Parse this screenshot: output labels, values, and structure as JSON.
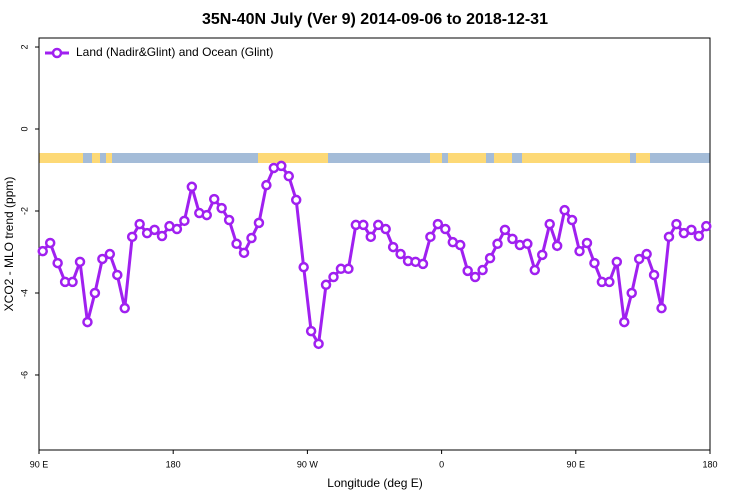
{
  "chart_data": {
    "type": "line",
    "title": "35N-40N July (Ver 9)   2014-09-06 to 2018-12-31",
    "xlabel": "Longitude (deg E)",
    "ylabel": "XCO2 - MLO trend (ppm)",
    "x": [
      92.5,
      97.5,
      102.5,
      107.5,
      112.5,
      117.5,
      122.5,
      127.5,
      132.5,
      137.5,
      142.5,
      147.5,
      152.5,
      157.5,
      162.5,
      167.5,
      172.5,
      177.5,
      182.5,
      187.5,
      192.5,
      197.5,
      202.5,
      207.5,
      212.5,
      217.5,
      222.5,
      227.5,
      232.5,
      237.5,
      242.5,
      247.5,
      252.5,
      257.5,
      262.5,
      267.5,
      272.5,
      277.5,
      282.5,
      287.5,
      292.5,
      297.5,
      302.5,
      307.5,
      312.5,
      317.5,
      322.5,
      327.5,
      332.5,
      337.5,
      342.5,
      347.5,
      352.5,
      357.5,
      362.5,
      367.5,
      372.5,
      377.5,
      382.5,
      387.5,
      392.5,
      397.5,
      402.5,
      407.5,
      412.5,
      417.5,
      422.5,
      427.5,
      432.5,
      437.5,
      442.5,
      447.5,
      452.5,
      457.5,
      462.5,
      467.5,
      472.5,
      477.5,
      482.5,
      487.5,
      492.5,
      497.5,
      502.5,
      507.5,
      512.5,
      517.5,
      522.5,
      527.5,
      532.5,
      537.5
    ],
    "series": [
      {
        "name": "Land (Nadir&Glint) and Ocean (Glint)",
        "color": "#a020f0",
        "values": [
          -2.98,
          -2.78,
          -3.27,
          -3.73,
          -3.73,
          -3.24,
          -4.71,
          -4.0,
          -3.17,
          -3.05,
          -3.56,
          -4.37,
          -2.63,
          -2.32,
          -2.54,
          -2.46,
          -2.61,
          -2.37,
          -2.44,
          -2.24,
          -1.41,
          -2.05,
          -2.1,
          -1.71,
          -1.93,
          -2.22,
          -2.8,
          -3.02,
          -2.66,
          -2.29,
          -1.37,
          -0.95,
          -0.9,
          -1.15,
          -1.73,
          -3.37,
          -4.93,
          -5.24,
          -3.8,
          -3.61,
          -3.41,
          -3.41,
          -2.34,
          -2.34,
          -2.63,
          -2.34,
          -2.44,
          -2.88,
          -3.05,
          -3.22,
          -3.24,
          -3.29,
          -2.63,
          -2.32,
          -2.44,
          -2.76,
          -2.83,
          -3.46,
          -3.61,
          -3.44,
          -3.15,
          -2.8,
          -2.46,
          -2.68,
          -2.83,
          -2.8,
          -3.44,
          -3.07,
          -2.32,
          -2.85,
          -1.98,
          -2.22,
          -2.98,
          -2.78,
          -3.27,
          -3.73,
          -3.73,
          -3.24,
          -4.71,
          -4.0,
          -3.17,
          -3.05,
          -3.56,
          -4.37,
          -2.63,
          -2.32,
          -2.54,
          -2.46,
          -2.61,
          -2.37
        ]
      }
    ],
    "xlim": [
      90,
      540
    ],
    "xticks": [
      {
        "value": 90,
        "label": "90 E"
      },
      180,
      {
        "value": 270,
        "label": "90 W"
      },
      {
        "value": 360,
        "label": "0"
      },
      {
        "value": 450,
        "label": "90 E"
      },
      {
        "value": 540,
        "label": "180"
      }
    ],
    "ylim": [
      -7.83,
      2.22
    ],
    "yticks": [
      -6,
      -4,
      -2,
      0,
      2
    ],
    "legend": "top-left"
  }
}
